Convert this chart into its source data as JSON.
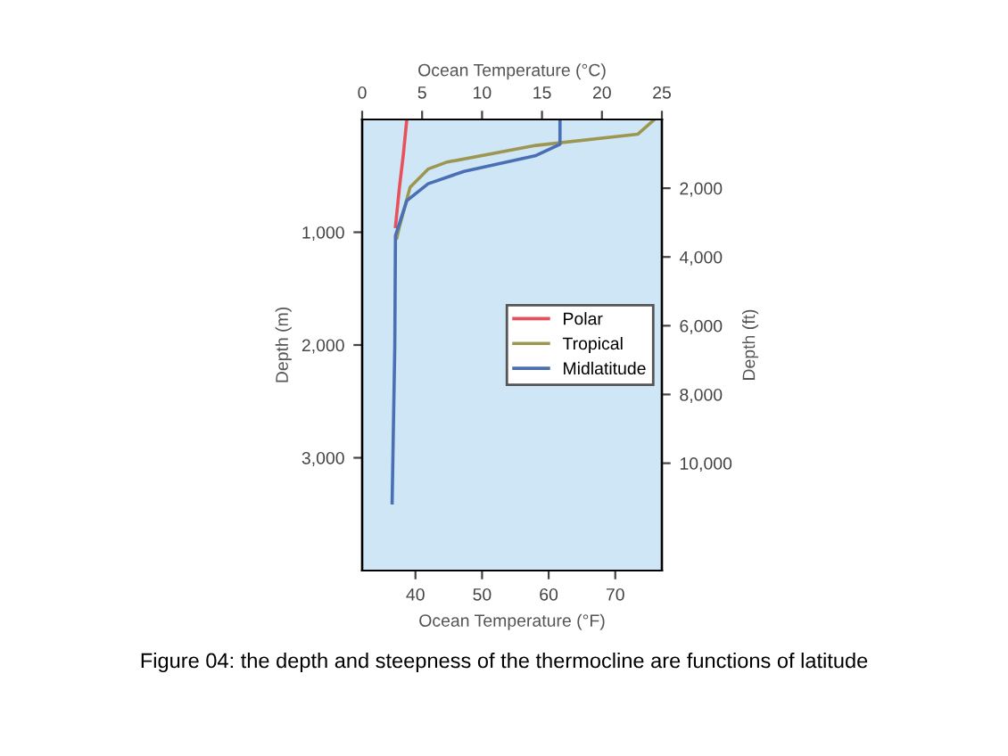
{
  "chart_data": {
    "type": "line",
    "xlabel": "Ocean Temperature (°F)",
    "x2label": "Ocean Temperature (°C)",
    "ylabel": "Depth (m)",
    "y2label": "Depth (ft)",
    "xlim": [
      32,
      77
    ],
    "xticks": [
      40,
      50,
      60,
      70
    ],
    "x2lim": [
      0,
      25
    ],
    "x2ticks": [
      0,
      5,
      10,
      15,
      20,
      25
    ],
    "ylim": [
      4000,
      0
    ],
    "yticks": [
      {
        "value": 1000,
        "label": "1,000"
      },
      {
        "value": 2000,
        "label": "2,000"
      },
      {
        "value": 3000,
        "label": "3,000"
      }
    ],
    "y2lim": [
      13123,
      0
    ],
    "y2ticks": [
      {
        "value": 2000,
        "label": "2,000"
      },
      {
        "value": 4000,
        "label": "4,000"
      },
      {
        "value": 6000,
        "label": "6,000"
      },
      {
        "value": 8000,
        "label": "8,000"
      },
      {
        "value": 10000,
        "label": "10,000"
      }
    ],
    "series": [
      {
        "name": "Polar",
        "color": "#e8505b",
        "x": [
          38.7,
          38.2,
          37.6,
          37.0
        ],
        "values": [
          0,
          300,
          600,
          950
        ]
      },
      {
        "name": "Tropical",
        "color": "#9c9650",
        "x": [
          75.9,
          73.4,
          58.1,
          44.6,
          41.9,
          39.2,
          37.6,
          37.2
        ],
        "values": [
          0,
          130,
          230,
          380,
          440,
          600,
          950,
          1050
        ]
      },
      {
        "name": "Midlatitude",
        "color": "#4a6fb5",
        "x": [
          61.7,
          61.7,
          58.1,
          47.3,
          41.9,
          38.7,
          37.0,
          36.9,
          36.5
        ],
        "values": [
          0,
          220,
          320,
          460,
          570,
          720,
          1030,
          2000,
          3400
        ]
      }
    ],
    "legend": "center right",
    "grid": false,
    "annotations": [
      "Figure 04: the depth and steepness of the thermocline are functions of latitude"
    ]
  }
}
